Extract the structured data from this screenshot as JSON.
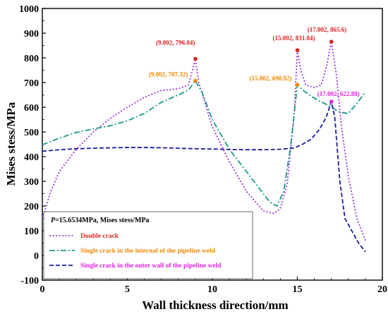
{
  "chart_data": {
    "type": "line",
    "xlabel": "Wall thickness direction/mm",
    "ylabel": "Mises stess/MPa",
    "xlim": [
      0,
      20
    ],
    "ylim": [
      -100,
      1000
    ],
    "xticks": [
      0,
      5,
      10,
      15,
      20
    ],
    "yticks": [
      -100,
      0,
      100,
      200,
      300,
      400,
      500,
      600,
      700,
      800,
      900,
      1000
    ],
    "grid": false,
    "legend_placement": "bottom-left",
    "legend_title": "P=15.6534MPa, Mises stess/MPa",
    "legend_title_italic": "P",
    "legend_title_rest": "=15.6534MPa, Mises stess/MPa",
    "series": [
      {
        "name": "Double crack",
        "color": "#9a35e0",
        "text_color": "#e02020",
        "dash": "2,2.5",
        "points": [
          [
            0,
            150
          ],
          [
            0.5,
            260
          ],
          [
            1,
            340
          ],
          [
            2,
            430
          ],
          [
            3,
            500
          ],
          [
            4,
            555
          ],
          [
            5,
            600
          ],
          [
            6,
            640
          ],
          [
            7,
            668
          ],
          [
            8,
            675
          ],
          [
            8.6,
            690
          ],
          [
            9.002,
            796.04
          ],
          [
            9.2,
            700
          ],
          [
            9.6,
            610
          ],
          [
            10,
            520
          ],
          [
            11,
            380
          ],
          [
            12,
            260
          ],
          [
            13,
            180
          ],
          [
            13.6,
            170
          ],
          [
            14,
            190
          ],
          [
            14.4,
            290
          ],
          [
            14.8,
            560
          ],
          [
            15.002,
            831.04
          ],
          [
            15.2,
            750
          ],
          [
            15.5,
            690
          ],
          [
            16,
            680
          ],
          [
            16.4,
            690
          ],
          [
            16.7,
            760
          ],
          [
            17.002,
            865.6
          ],
          [
            17.3,
            730
          ],
          [
            17.6,
            520
          ],
          [
            18,
            320
          ],
          [
            18.5,
            150
          ],
          [
            19,
            60
          ]
        ]
      },
      {
        "name": "Single crack in the internal of the pipeline weld",
        "color": "#1a9a8a",
        "text_color": "#ee8800",
        "dash": "8,3,2,3",
        "points": [
          [
            0,
            448
          ],
          [
            1,
            475
          ],
          [
            2,
            498
          ],
          [
            3,
            512
          ],
          [
            4,
            525
          ],
          [
            5,
            545
          ],
          [
            6,
            575
          ],
          [
            7,
            620
          ],
          [
            8,
            650
          ],
          [
            8.6,
            670
          ],
          [
            9.002,
            707.32
          ],
          [
            9.4,
            660
          ],
          [
            10,
            550
          ],
          [
            11,
            430
          ],
          [
            12,
            340
          ],
          [
            13,
            250
          ],
          [
            13.4,
            215
          ],
          [
            13.8,
            200
          ],
          [
            14.2,
            260
          ],
          [
            14.6,
            440
          ],
          [
            15.002,
            690.92
          ],
          [
            15.3,
            670
          ],
          [
            15.8,
            645
          ],
          [
            16.3,
            625
          ],
          [
            16.7,
            612
          ],
          [
            17.002,
            600
          ],
          [
            17.5,
            580
          ],
          [
            18,
            575
          ],
          [
            18.5,
            615
          ],
          [
            19,
            662
          ]
        ]
      },
      {
        "name": "Single crack in the outer wall of the pipeline weld",
        "color": "#1a1a9a",
        "text_color": "#e020e0",
        "dash": "6,3",
        "points": [
          [
            0,
            422
          ],
          [
            1,
            428
          ],
          [
            2,
            432
          ],
          [
            3,
            434
          ],
          [
            4,
            436
          ],
          [
            5,
            437
          ],
          [
            6,
            437
          ],
          [
            7,
            436
          ],
          [
            8,
            434
          ],
          [
            9,
            432
          ],
          [
            10,
            431
          ],
          [
            11,
            429
          ],
          [
            12,
            428
          ],
          [
            13,
            428
          ],
          [
            14,
            430
          ],
          [
            14.8,
            435
          ],
          [
            15.3,
            450
          ],
          [
            15.8,
            470
          ],
          [
            16.3,
            510
          ],
          [
            16.7,
            560
          ],
          [
            17.002,
            622.88
          ],
          [
            17.2,
            560
          ],
          [
            17.5,
            300
          ],
          [
            17.8,
            150
          ],
          [
            18.2,
            100
          ],
          [
            18.6,
            50
          ],
          [
            19,
            15
          ]
        ]
      }
    ],
    "annotations": [
      {
        "x": 9.002,
        "y": 796.04,
        "text": "(9.002, 796.04)",
        "color": "#e02020"
      },
      {
        "x": 9.002,
        "y": 707.32,
        "text": "(9.002, 707.32)",
        "color": "#ee8800"
      },
      {
        "x": 15.002,
        "y": 831.04,
        "text": "(15.002, 831.04)",
        "color": "#e02020"
      },
      {
        "x": 15.002,
        "y": 690.92,
        "text": "(15.002, 690.92)",
        "color": "#ee8800"
      },
      {
        "x": 17.002,
        "y": 865.6,
        "text": "(17.002, 865.6)",
        "color": "#e02020"
      },
      {
        "x": 17.002,
        "y": 622.88,
        "text": "(17.002, 622.88)",
        "color": "#e020e0"
      }
    ]
  }
}
